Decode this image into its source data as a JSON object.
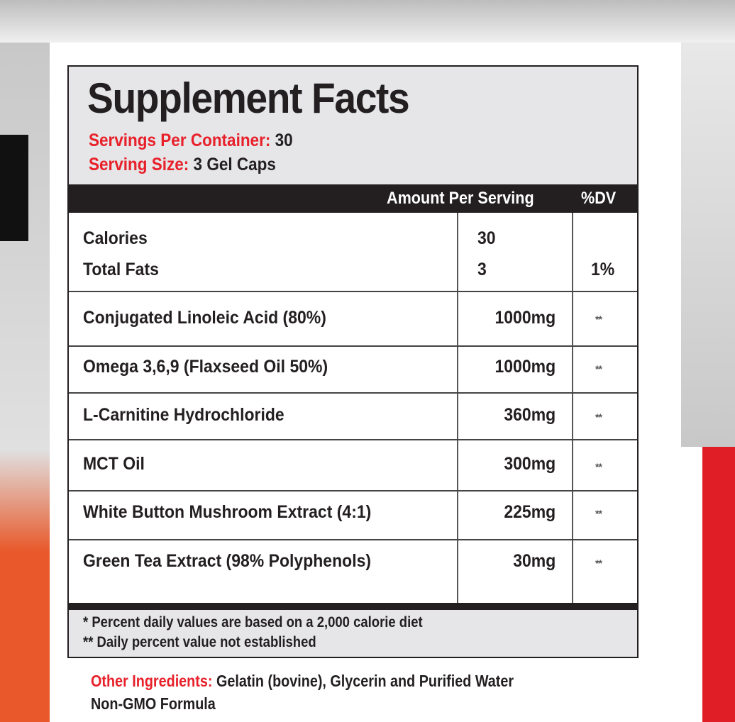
{
  "title": "Supplement Facts",
  "servings_per_container": {
    "label": "Servings Per Container:",
    "value": "30"
  },
  "serving_size": {
    "label": "Serving Size:",
    "value": "3 Gel Caps"
  },
  "columns": {
    "amount": "Amount Per Serving",
    "dv": "%DV"
  },
  "top_rows": [
    {
      "name": "Calories",
      "amount": "30",
      "dv": ""
    },
    {
      "name": "Total Fats",
      "amount": "3",
      "dv": "1%"
    }
  ],
  "ingredients": [
    {
      "name": "Conjugated Linoleic Acid (80%)",
      "amount": "1000mg",
      "dv": "**"
    },
    {
      "name": "Omega 3,6,9 (Flaxseed Oil 50%)",
      "amount": "1000mg",
      "dv": "**"
    },
    {
      "name": "L-Carnitine Hydrochloride",
      "amount": "360mg",
      "dv": "**"
    },
    {
      "name": "MCT Oil",
      "amount": "300mg",
      "dv": "**"
    },
    {
      "name": "White Button Mushroom Extract (4:1)",
      "amount": "225mg",
      "dv": "**"
    },
    {
      "name": "Green Tea Extract (98% Polyphenols)",
      "amount": "30mg",
      "dv": "**"
    }
  ],
  "footnotes": [
    "* Percent daily values are based on a 2,000 calorie diet",
    "** Daily percent value not established"
  ],
  "other_ingredients": {
    "label": "Other Ingredients:",
    "value": "Gelatin (bovine), Glycerin and Purified Water"
  },
  "note": "Non-GMO Formula",
  "colors": {
    "accent_red": "#e8202a",
    "dark": "#231f20",
    "panel_gray": "#e6e6e8",
    "orange": "#e8582a"
  }
}
